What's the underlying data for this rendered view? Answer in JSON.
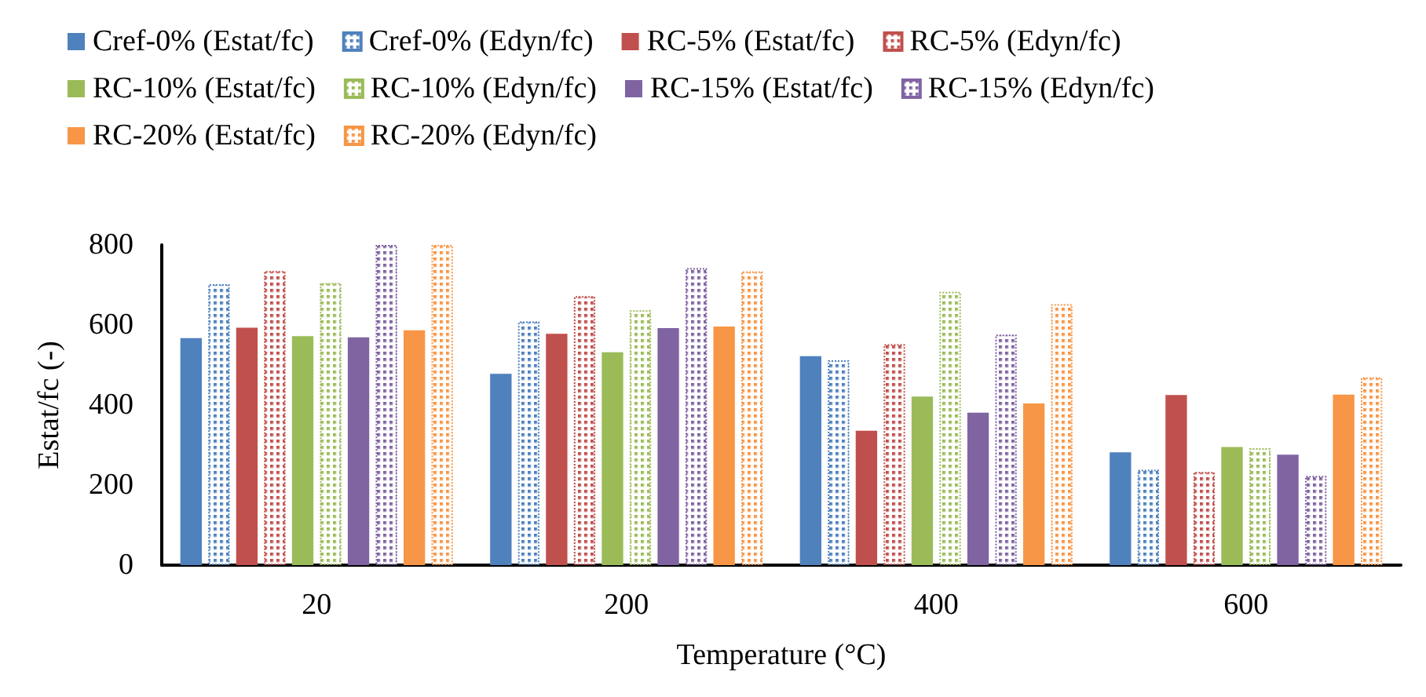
{
  "chart_data": {
    "type": "bar",
    "xlabel": "Temperature (°C)",
    "ylabel": "Estat/fc (-)",
    "categories": [
      "20",
      "200",
      "400",
      "600"
    ],
    "series": [
      {
        "name": "Cref-0% (Estat/fc)",
        "color": "#4f81bd",
        "values": [
          567,
          478,
          522,
          282
        ]
      },
      {
        "name": "Cref-0% (Edyn/fc)",
        "color": "#4f81bd",
        "line_style": "dotted",
        "values": [
          702,
          609,
          512,
          238
        ]
      },
      {
        "name": "RC-5% (Estat/fc)",
        "color": "#c0504d",
        "values": [
          593,
          578,
          336,
          425
        ]
      },
      {
        "name": "RC-5% (Edyn/fc)",
        "color": "#c0504d",
        "line_style": "dotted",
        "values": [
          735,
          672,
          552,
          233
        ]
      },
      {
        "name": "RC-10% (Estat/fc)",
        "color": "#9bbb59",
        "values": [
          572,
          532,
          421,
          295
        ]
      },
      {
        "name": "RC-10% (Edyn/fc)",
        "color": "#9bbb59",
        "line_style": "dotted",
        "values": [
          705,
          637,
          683,
          292
        ]
      },
      {
        "name": "RC-15% (Estat/fc)",
        "color": "#8064a2",
        "values": [
          569,
          592,
          381,
          276
        ]
      },
      {
        "name": "RC-15% (Edyn/fc)",
        "color": "#8064a2",
        "line_style": "dotted",
        "values": [
          800,
          742,
          576,
          223
        ]
      },
      {
        "name": "RC-20% (Estat/fc)",
        "color": "#f79646",
        "values": [
          587,
          596,
          404,
          426
        ]
      },
      {
        "name": "RC-20% (Edyn/fc)",
        "color": "#f79646",
        "line_style": "dotted",
        "values": [
          800,
          734,
          652,
          469
        ]
      }
    ],
    "ylim": [
      0,
      800
    ],
    "yticks": [
      0,
      200,
      400,
      600,
      800
    ],
    "grid": false,
    "legend": "top"
  }
}
